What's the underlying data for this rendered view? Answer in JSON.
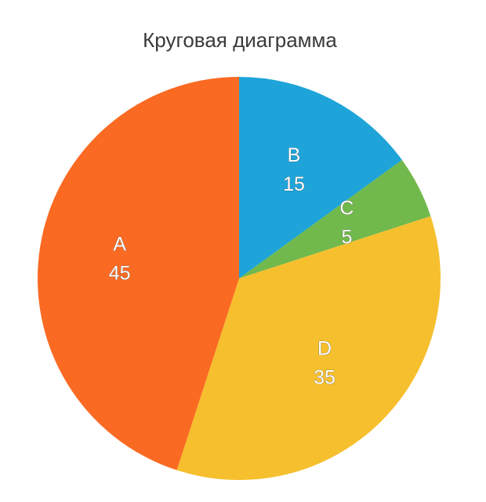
{
  "chart_data": {
    "type": "pie",
    "title": "Круговая диаграмма",
    "categories": [
      "B",
      "C",
      "D",
      "A"
    ],
    "values": [
      15,
      5,
      35,
      45
    ],
    "colors": [
      "#1ea4d9",
      "#71b94c",
      "#f6bf2d",
      "#fa6a22"
    ]
  }
}
